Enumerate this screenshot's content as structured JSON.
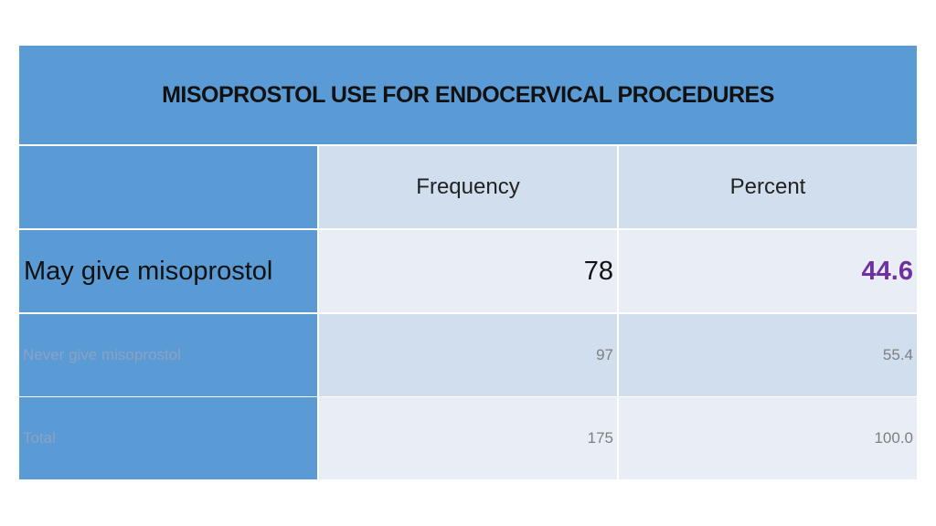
{
  "title": "MISOPROSTOL USE FOR ENDOCERVICAL PROCEDURES",
  "columns": [
    "",
    "Frequency",
    "Percent"
  ],
  "rows": [
    {
      "label": "May give misoprostol",
      "frequency": "78",
      "percent": "44.6"
    },
    {
      "label": "Never give misoprostol",
      "frequency": "97",
      "percent": "55.4"
    },
    {
      "label": "Total",
      "frequency": "175",
      "percent": "100.0"
    }
  ],
  "colors": {
    "header_blue": "#5b9bd5",
    "band_dark": "#d0deee",
    "band_light": "#e9edf6",
    "highlight_percent": "#7030a0"
  }
}
